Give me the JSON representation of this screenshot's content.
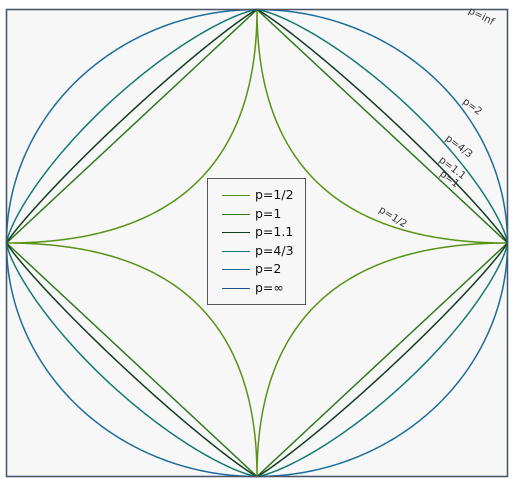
{
  "chart_data": {
    "type": "line",
    "title": "",
    "xlim": [
      -1,
      1
    ],
    "ylim": [
      -1,
      1
    ],
    "grid": false,
    "legend_position": "center",
    "background": "#f7f7f7",
    "series": [
      {
        "name": "p=1/2",
        "p": 0.5,
        "color": "#5a9216",
        "curve_label": "p=1/2"
      },
      {
        "name": "p=1",
        "p": 1,
        "color": "#2e7a1a",
        "curve_label": "p=1"
      },
      {
        "name": "p=1.1",
        "p": 1.1,
        "color": "#123b22",
        "curve_label": "p=1.1"
      },
      {
        "name": "p=4/3",
        "p": 1.3333,
        "color": "#147a73",
        "curve_label": "p=4/3"
      },
      {
        "name": "p=2",
        "p": 2,
        "color": "#1c6d9c",
        "curve_label": "p=2"
      },
      {
        "name": "p=∞",
        "p": "inf",
        "color": "#1f4a8c",
        "curve_label": "p=inf"
      }
    ]
  }
}
